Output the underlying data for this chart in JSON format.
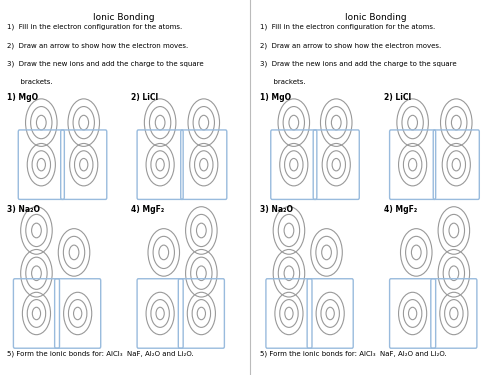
{
  "title": "Ionic Bonding",
  "instructions": [
    "1)  Fill in the electron configuration for the atoms.",
    "2)  Draw an arrow to show how the electron moves.",
    "3)  Draw the new ions and add the charge to the square\n      brackets."
  ],
  "section_labels": [
    "1) MgO",
    "2) LiCl",
    "3) Na₂O",
    "4) MgF₂"
  ],
  "bottom_text": "5) Form the ionic bonds for: AlCl₃  NaF, Al₂O and Li₂O.",
  "bg_color": "#ffffff",
  "circle_color": "#999999",
  "bracket_color": "#99bbdd",
  "text_color": "#000000"
}
